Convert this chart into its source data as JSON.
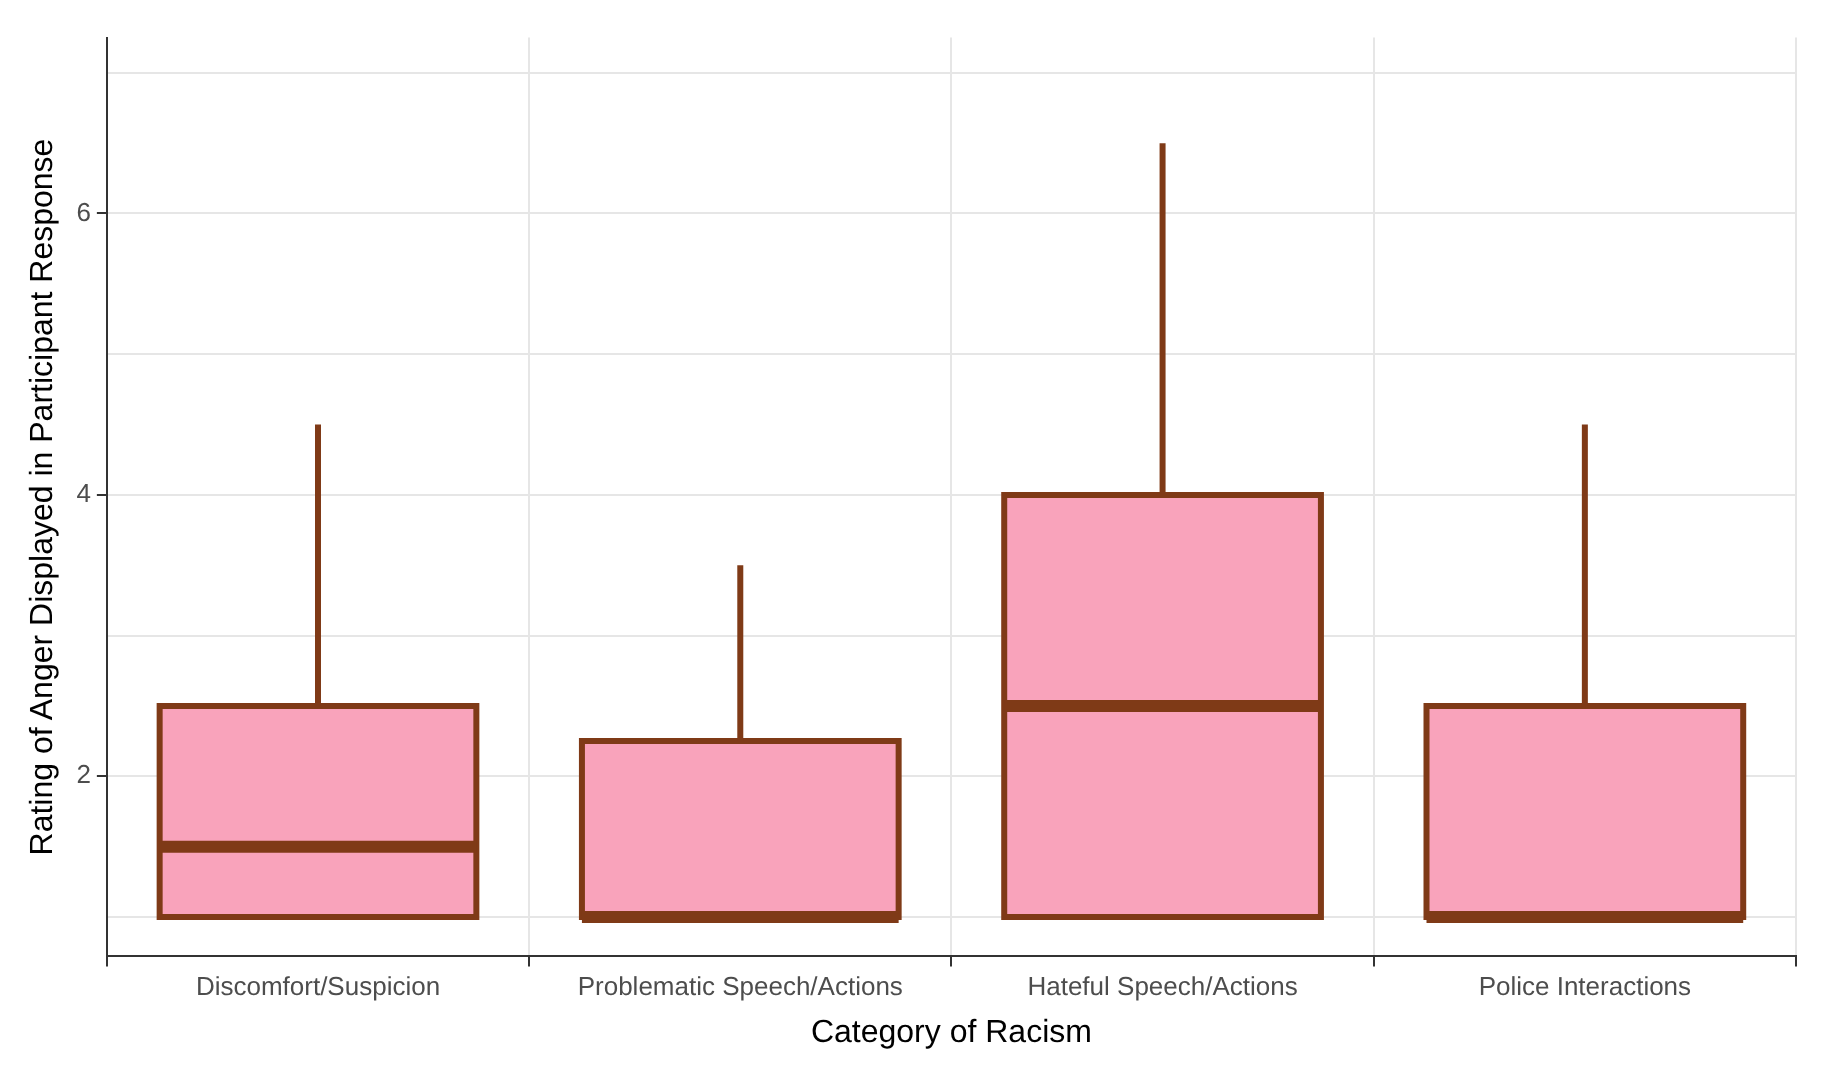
{
  "chart_data": {
    "type": "box",
    "xlabel": "Category of Racism",
    "ylabel": "Rating of Anger Displayed in Participant Response",
    "categories": [
      "Discomfort/Suspicion",
      "Problematic Speech/Actions",
      "Hateful Speech/Actions",
      "Police Interactions"
    ],
    "boxes": [
      {
        "low": 1,
        "q1": 1,
        "median": 1.5,
        "q3": 2.5,
        "high": 4.5
      },
      {
        "low": 1,
        "q1": 1,
        "median": 1,
        "q3": 2.25,
        "high": 3.5
      },
      {
        "low": 1,
        "q1": 1,
        "median": 2.5,
        "q3": 4,
        "high": 6.5
      },
      {
        "low": 1,
        "q1": 1,
        "median": 1,
        "q3": 2.5,
        "high": 4.5
      }
    ],
    "color": "#f9a3bb",
    "ylim": [
      0.72,
      7.25
    ],
    "yticks": [
      {
        "value": 1,
        "label": null
      },
      2,
      {
        "value": 3,
        "label": null
      },
      4,
      {
        "value": 5,
        "label": null
      },
      6,
      {
        "value": 7,
        "label": null
      }
    ],
    "grid": true,
    "legend": false
  }
}
